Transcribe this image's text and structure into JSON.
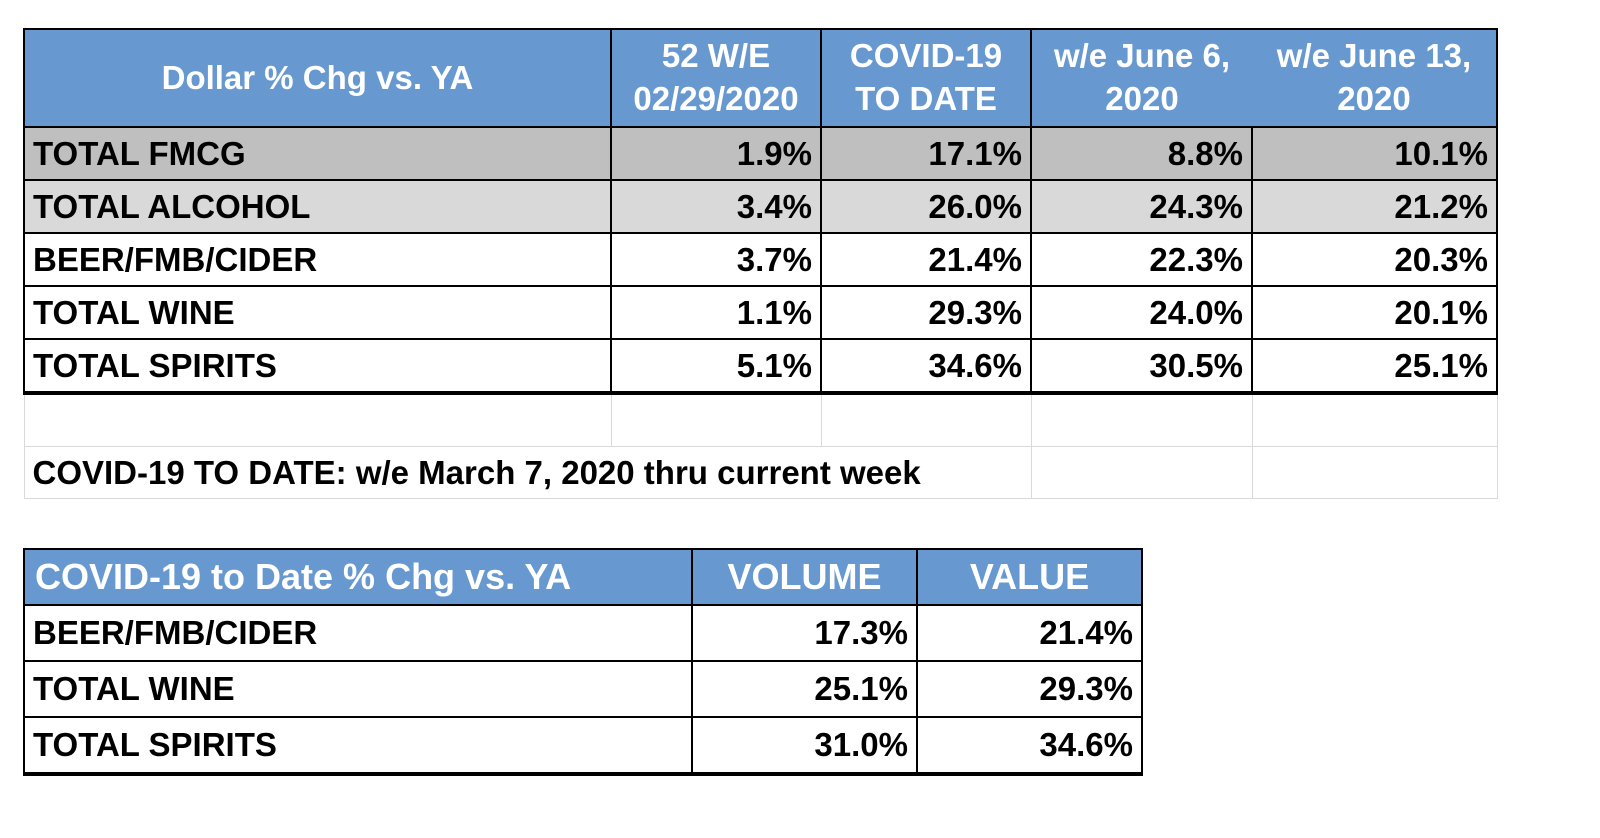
{
  "table1": {
    "header": {
      "label": "Dollar % Chg vs. YA",
      "col1": [
        "52 W/E",
        "02/29/2020"
      ],
      "col2": [
        "COVID-19",
        "TO DATE"
      ],
      "col3": [
        "w/e June 6,",
        "2020"
      ],
      "col4": [
        "w/e June 13,",
        "2020"
      ]
    },
    "rows": [
      {
        "label": "TOTAL FMCG",
        "v1": "1.9%",
        "v2": "17.1%",
        "v3": "8.8%",
        "v4": "10.1%"
      },
      {
        "label": "TOTAL ALCOHOL",
        "v1": "3.4%",
        "v2": "26.0%",
        "v3": "24.3%",
        "v4": "21.2%"
      },
      {
        "label": "BEER/FMB/CIDER",
        "v1": "3.7%",
        "v2": "21.4%",
        "v3": "22.3%",
        "v4": "20.3%"
      },
      {
        "label": "TOTAL WINE",
        "v1": "1.1%",
        "v2": "29.3%",
        "v3": "24.0%",
        "v4": "20.1%"
      },
      {
        "label": "TOTAL SPIRITS",
        "v1": "5.1%",
        "v2": "34.6%",
        "v3": "30.5%",
        "v4": "25.1%"
      }
    ],
    "footnote": "COVID-19 TO DATE: w/e March 7, 2020 thru current week"
  },
  "table2": {
    "header": {
      "label": "COVID-19 to Date % Chg vs. YA",
      "volume": "VOLUME",
      "value": "VALUE"
    },
    "rows": [
      {
        "label": "BEER/FMB/CIDER",
        "volume": "17.3%",
        "value": "21.4%"
      },
      {
        "label": "TOTAL WINE",
        "volume": "25.1%",
        "value": "29.3%"
      },
      {
        "label": "TOTAL SPIRITS",
        "volume": "31.0%",
        "value": "34.6%"
      }
    ]
  },
  "colors": {
    "header_bg": "#6799d0",
    "header_text": "#ffffff",
    "row_fmcg_bg": "#bfbfbf",
    "row_alcohol_bg": "#d9d9d9"
  }
}
